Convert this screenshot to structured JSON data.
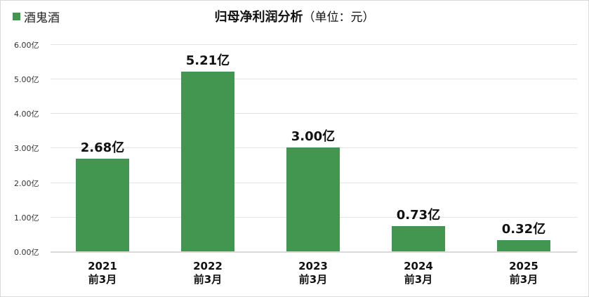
{
  "legend": {
    "label": "酒鬼酒",
    "color": "#43964f"
  },
  "title": {
    "main": "归母净利润分析",
    "unit": "（单位：元）"
  },
  "yaxis": {
    "ticks": [
      "0.00亿",
      "1.00亿",
      "2.00亿",
      "3.00亿",
      "4.00亿",
      "5.00亿",
      "6.00亿"
    ]
  },
  "xaxis": {
    "labels": [
      {
        "year": "2021",
        "period": "前3月"
      },
      {
        "year": "2022",
        "period": "前3月"
      },
      {
        "year": "2023",
        "period": "前3月"
      },
      {
        "year": "2024",
        "period": "前3月"
      },
      {
        "year": "2025",
        "period": "前3月"
      }
    ]
  },
  "bar_labels": [
    "2.68亿",
    "5.21亿",
    "3.00亿",
    "0.73亿",
    "0.32亿"
  ],
  "chart_data": {
    "type": "bar",
    "title": "归母净利润分析（单位：元）",
    "xlabel": "",
    "ylabel": "",
    "categories": [
      "2021前3月",
      "2022前3月",
      "2023前3月",
      "2024前3月",
      "2025前3月"
    ],
    "series": [
      {
        "name": "酒鬼酒",
        "values": [
          2.68,
          5.21,
          3.0,
          0.73,
          0.32
        ],
        "unit": "亿",
        "color": "#43964f"
      }
    ],
    "ylim": [
      0,
      6
    ],
    "yticks": [
      0,
      1,
      2,
      3,
      4,
      5,
      6
    ],
    "grid": true,
    "legend_position": "top-left"
  }
}
